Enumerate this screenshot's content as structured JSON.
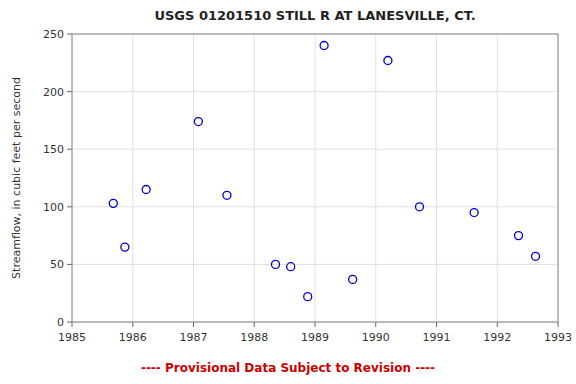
{
  "chart_data": {
    "type": "scatter",
    "title": "USGS 01201510 STILL R AT LANESVILLE, CT.",
    "y_label": "Streamflow, in cubic feet per second",
    "annotations": [
      "---- Provisional Data Subject to Revision ----"
    ],
    "x": [
      1985.68,
      1985.87,
      1986.22,
      1987.08,
      1987.55,
      1988.35,
      1988.6,
      1988.88,
      1989.15,
      1989.62,
      1990.2,
      1990.72,
      1991.62,
      1992.35,
      1992.63
    ],
    "values": [
      103,
      65,
      115,
      174,
      110,
      50,
      48,
      22,
      240,
      37,
      227,
      100,
      95,
      75,
      57
    ],
    "color": "#0000cc",
    "marker": "circle",
    "xlim": [
      1985,
      1993
    ],
    "ylim": [
      0,
      250
    ],
    "xticks": [
      1985,
      1986,
      1987,
      1988,
      1989,
      1990,
      1991,
      1992,
      1993
    ],
    "yticks": [
      0,
      50,
      100,
      150,
      200,
      250
    ],
    "grid": true
  }
}
